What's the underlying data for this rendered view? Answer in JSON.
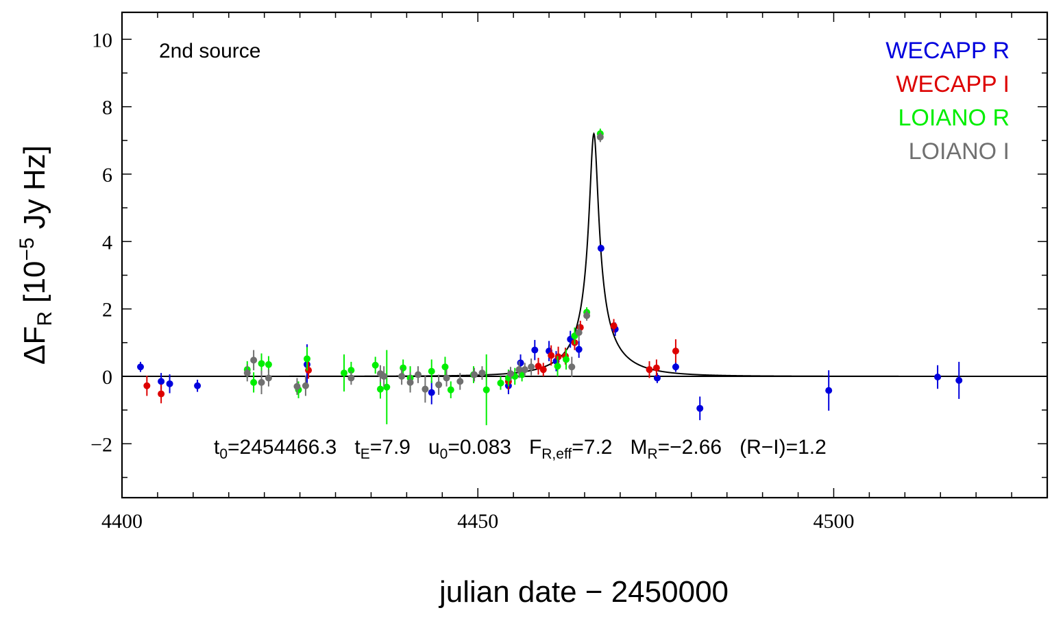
{
  "chart_data": {
    "type": "scatter",
    "panel_label": "2nd source",
    "xlabel": "julian date − 2450000",
    "ylabel": {
      "prefix": "ΔF",
      "sub": "R",
      "middle": " [10",
      "sup": "−5",
      "suffix": " Jy Hz]"
    },
    "xlim": [
      4400,
      4530
    ],
    "ylim": [
      -3.6,
      10.8
    ],
    "x_ticks": [
      4400,
      4450,
      4500
    ],
    "y_ticks": [
      -2,
      0,
      2,
      4,
      6,
      8,
      10
    ],
    "x_tick_labels": [
      "4400",
      "4450",
      "4500"
    ],
    "y_tick_labels": [
      "−2",
      "0",
      "2",
      "4",
      "6",
      "8",
      "10"
    ],
    "x_minor_step": 5,
    "y_minor_step": 1,
    "grid": false,
    "legend_position": "top-right",
    "zero_line": true,
    "fit_params": [
      {
        "base": "t",
        "sub": "0",
        "value": "=2454466.3"
      },
      {
        "base": "t",
        "sub": "E",
        "value": "=7.9"
      },
      {
        "base": "u",
        "sub": "0",
        "value": "=0.083"
      },
      {
        "base": "F",
        "sub": "R,eff",
        "value": "=7.2"
      },
      {
        "base": "M",
        "sub": "R",
        "value": "=−2.66"
      },
      {
        "base": "(R−I)=1.2",
        "sub": "",
        "value": ""
      }
    ],
    "model": {
      "name": "",
      "t0": 4466.3,
      "tE": 7.9,
      "u0": 0.083,
      "F_eff": 7.2,
      "color": "#000000"
    },
    "series": [
      {
        "name": "WECAPP R",
        "color": "#0000dd",
        "points": [
          [
            4402.6,
            0.28,
            0.15
          ],
          [
            4405.5,
            -0.15,
            0.25
          ],
          [
            4406.7,
            -0.22,
            0.28
          ],
          [
            4410.6,
            -0.28,
            0.18
          ],
          [
            4426.0,
            0.35,
            0.6
          ],
          [
            4443.5,
            -0.48,
            0.35
          ],
          [
            4454.3,
            -0.28,
            0.25
          ],
          [
            4456.0,
            0.4,
            0.25
          ],
          [
            4458.0,
            0.78,
            0.3
          ],
          [
            4460.0,
            0.75,
            0.3
          ],
          [
            4461.0,
            0.45,
            0.3
          ],
          [
            4463.0,
            1.1,
            0.25
          ],
          [
            4464.2,
            0.8,
            0.25
          ],
          [
            4467.3,
            3.8,
            0.1
          ],
          [
            4469.3,
            1.4,
            0.2
          ],
          [
            4475.2,
            -0.05,
            0.15
          ],
          [
            4477.8,
            0.28,
            0.15
          ],
          [
            4481.2,
            -0.95,
            0.35
          ],
          [
            4499.3,
            -0.42,
            0.6
          ],
          [
            4514.6,
            -0.02,
            0.35
          ],
          [
            4517.6,
            -0.12,
            0.55
          ]
        ]
      },
      {
        "name": "WECAPP I",
        "color": "#dd0000",
        "points": [
          [
            4403.5,
            -0.28,
            0.3
          ],
          [
            4405.5,
            -0.52,
            0.28
          ],
          [
            4426.2,
            0.18,
            0.25
          ],
          [
            4454.3,
            -0.15,
            0.25
          ],
          [
            4458.5,
            0.3,
            0.25
          ],
          [
            4459.2,
            0.2,
            0.2
          ],
          [
            4460.3,
            0.62,
            0.3
          ],
          [
            4461.3,
            0.58,
            0.3
          ],
          [
            4462.3,
            0.6,
            0.25
          ],
          [
            4463.6,
            1.0,
            0.22
          ],
          [
            4464.4,
            1.45,
            0.2
          ],
          [
            4469.1,
            1.5,
            0.2
          ],
          [
            4474.1,
            0.2,
            0.25
          ],
          [
            4475.1,
            0.25,
            0.25
          ],
          [
            4477.8,
            0.75,
            0.35
          ]
        ]
      },
      {
        "name": "LOIANO R",
        "color": "#00ee00",
        "points": [
          [
            4417.6,
            0.2,
            0.25
          ],
          [
            4418.5,
            -0.18,
            0.3
          ],
          [
            4419.6,
            0.38,
            0.3
          ],
          [
            4420.6,
            0.35,
            0.25
          ],
          [
            4424.8,
            -0.4,
            0.25
          ],
          [
            4426.0,
            0.52,
            0.35
          ],
          [
            4431.2,
            0.1,
            0.55
          ],
          [
            4432.2,
            0.18,
            0.25
          ],
          [
            4435.6,
            0.33,
            0.25
          ],
          [
            4436.3,
            -0.38,
            0.28
          ],
          [
            4437.2,
            -0.32,
            1.1
          ],
          [
            4439.5,
            0.25,
            0.25
          ],
          [
            4440.5,
            -0.05,
            0.35
          ],
          [
            4443.5,
            0.15,
            0.35
          ],
          [
            4445.4,
            0.28,
            0.3
          ],
          [
            4446.2,
            -0.4,
            0.25
          ],
          [
            4449.4,
            0.05,
            0.25
          ],
          [
            4451.2,
            -0.4,
            1.05
          ],
          [
            4453.2,
            -0.2,
            0.2
          ],
          [
            4454.3,
            -0.05,
            0.25
          ],
          [
            4455.2,
            0.0,
            0.25
          ],
          [
            4456.2,
            0.05,
            0.2
          ],
          [
            4461.2,
            0.3,
            0.3
          ],
          [
            4462.4,
            0.5,
            0.3
          ],
          [
            4463.6,
            1.2,
            0.25
          ],
          [
            4465.3,
            1.9,
            0.15
          ],
          [
            4467.2,
            7.2,
            0.15
          ]
        ]
      },
      {
        "name": "LOIANO I",
        "color": "#707070",
        "points": [
          [
            4417.6,
            0.1,
            0.25
          ],
          [
            4418.5,
            0.48,
            0.3
          ],
          [
            4419.6,
            -0.18,
            0.35
          ],
          [
            4420.6,
            -0.05,
            0.25
          ],
          [
            4424.6,
            -0.3,
            0.25
          ],
          [
            4425.8,
            -0.28,
            0.3
          ],
          [
            4432.2,
            -0.05,
            0.2
          ],
          [
            4436.3,
            0.08,
            0.25
          ],
          [
            4436.8,
            0.0,
            0.3
          ],
          [
            4439.3,
            0.0,
            0.25
          ],
          [
            4440.5,
            -0.18,
            0.3
          ],
          [
            4441.6,
            0.05,
            0.25
          ],
          [
            4442.6,
            -0.38,
            0.4
          ],
          [
            4444.5,
            -0.25,
            0.3
          ],
          [
            4445.6,
            -0.05,
            0.25
          ],
          [
            4447.5,
            -0.15,
            0.25
          ],
          [
            4449.5,
            0.05,
            0.2
          ],
          [
            4450.6,
            0.1,
            0.2
          ],
          [
            4454.6,
            0.08,
            0.2
          ],
          [
            4455.8,
            0.2,
            0.25
          ],
          [
            4456.6,
            0.2,
            0.2
          ],
          [
            4457.5,
            0.28,
            0.25
          ],
          [
            4463.2,
            0.28,
            0.3
          ],
          [
            4464.2,
            1.3,
            0.25
          ],
          [
            4465.3,
            1.8,
            0.15
          ],
          [
            4467.2,
            7.1,
            0.15
          ]
        ]
      }
    ]
  }
}
